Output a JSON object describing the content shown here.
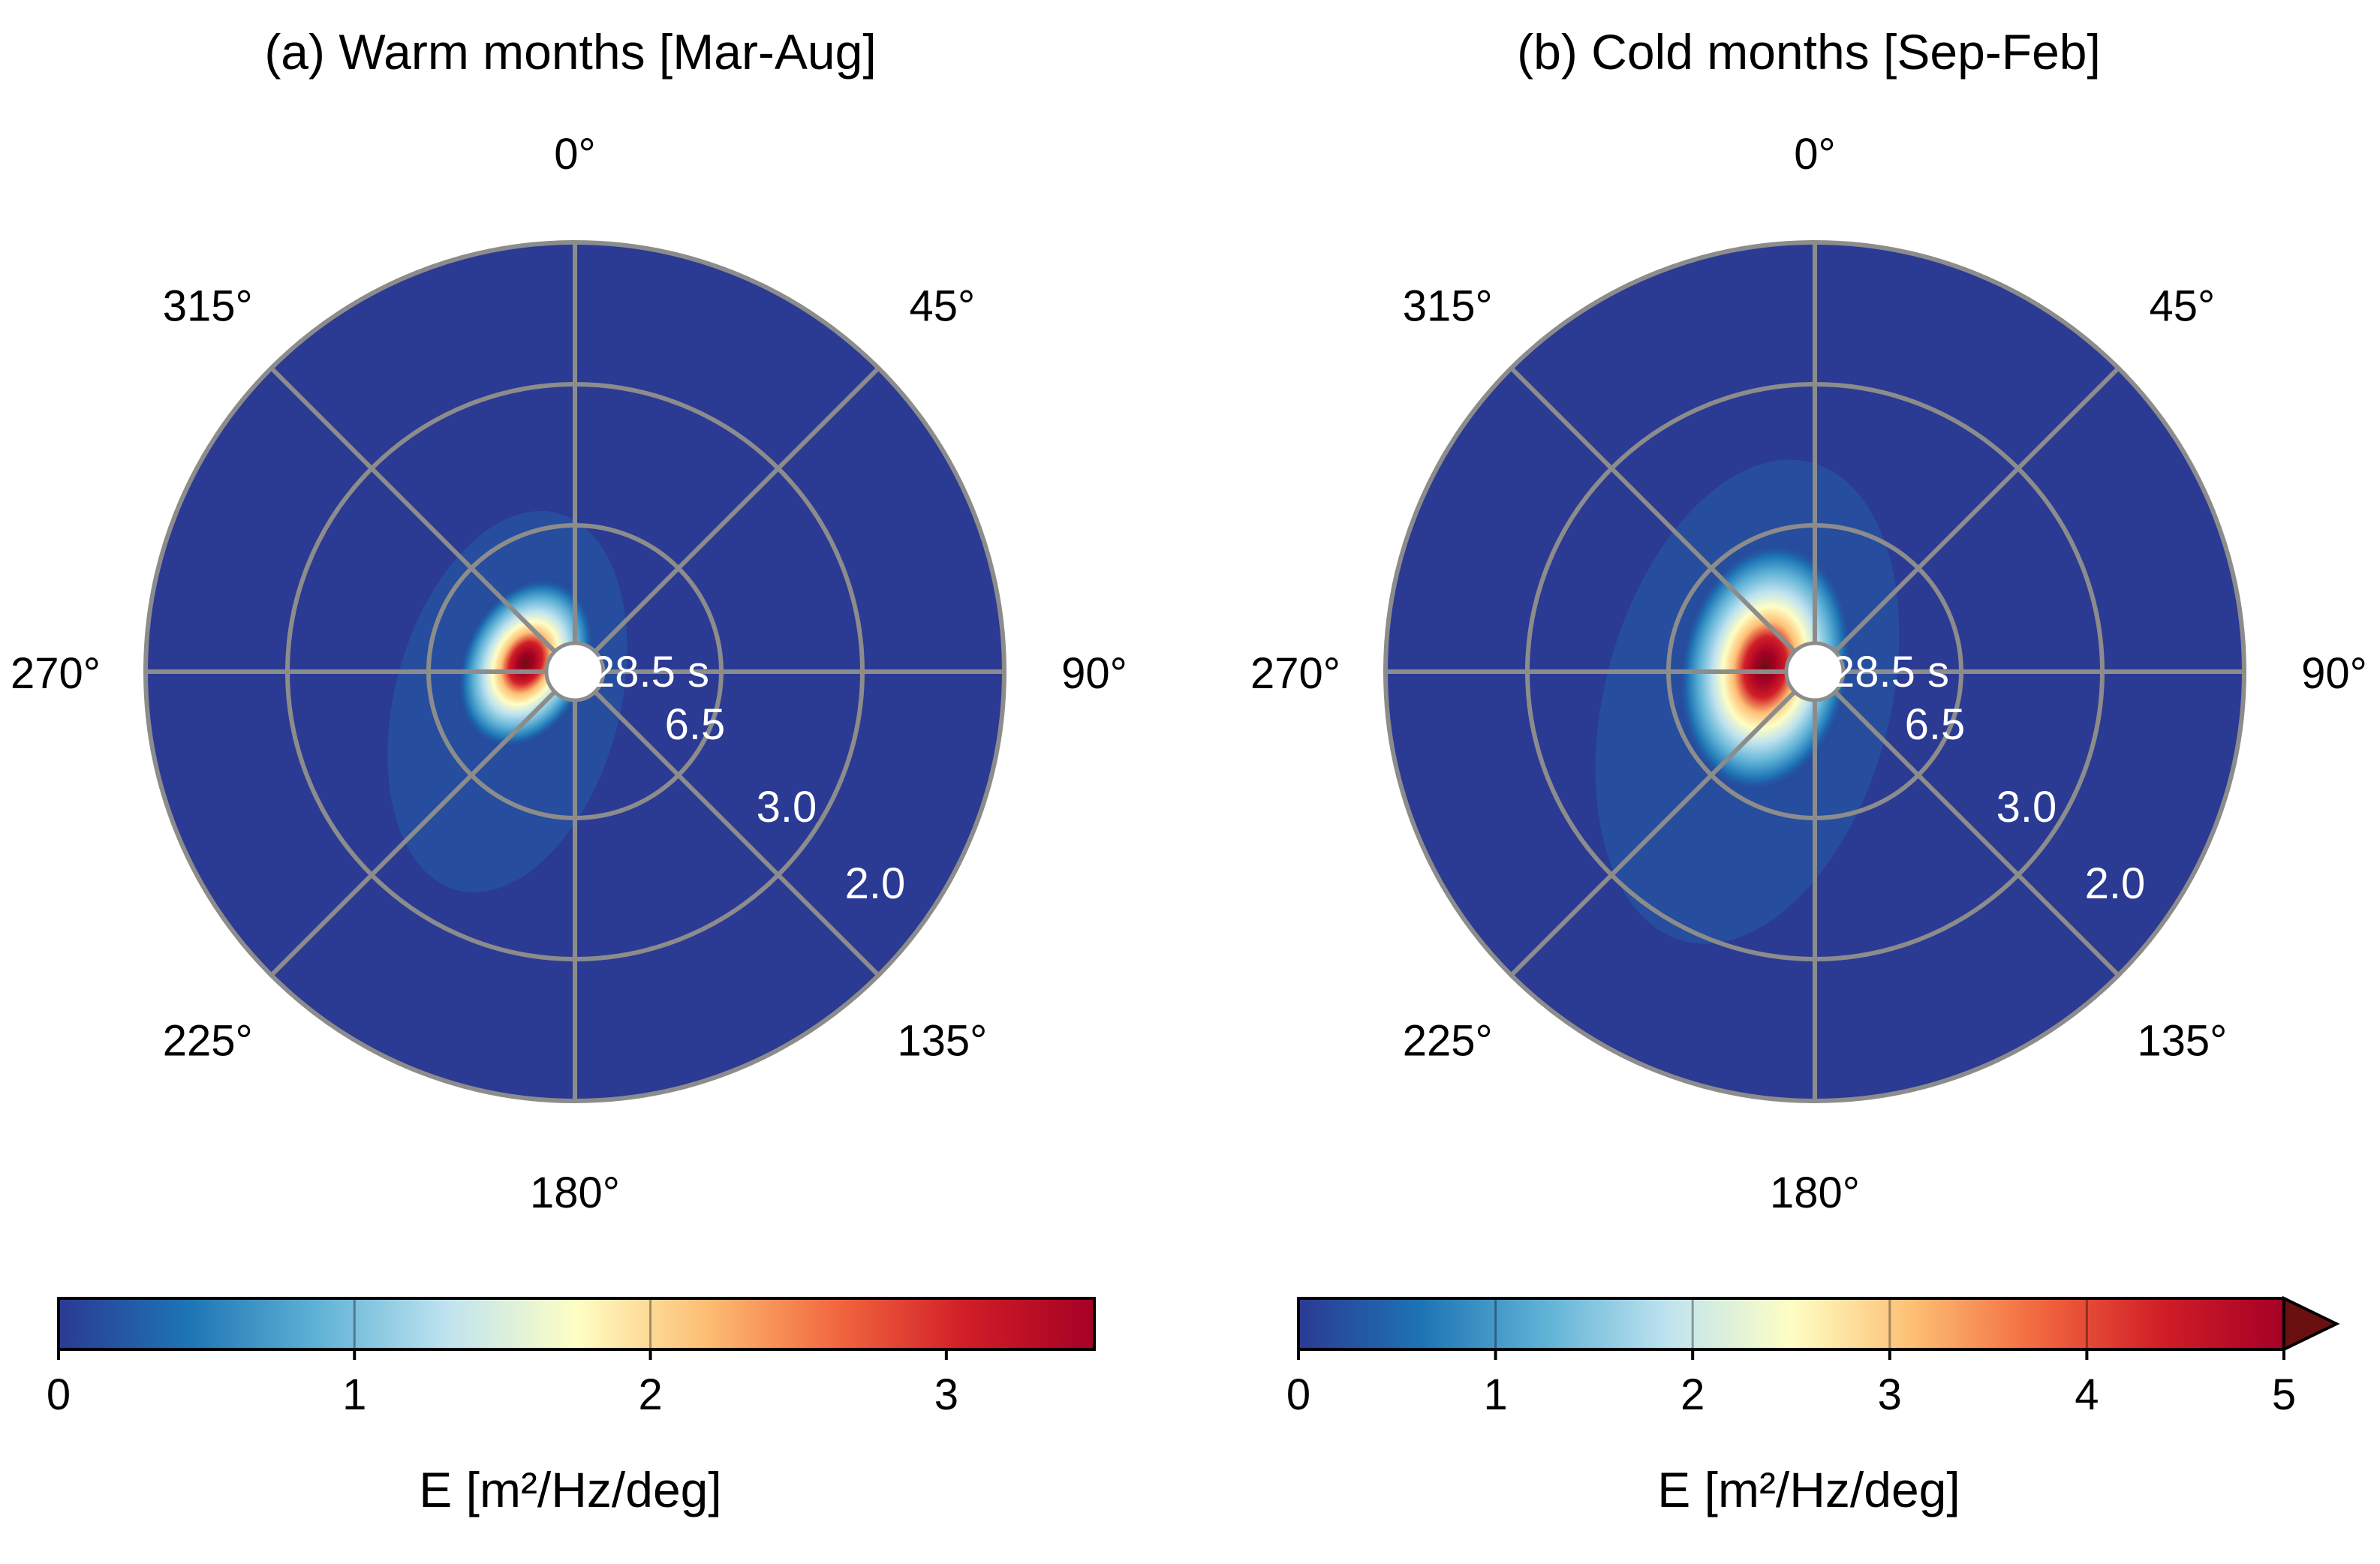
{
  "colors": {
    "background": "#2b3a93",
    "grid": "#8c8c8c",
    "colormap": [
      "#2b3a93",
      "#1d74b4",
      "#5fb2d6",
      "#bfe3ef",
      "#fefec4",
      "#fdbe73",
      "#f2683f",
      "#d11e27",
      "#a50026"
    ],
    "extend_color": "#6a1010"
  },
  "chart_data": [
    {
      "type": "polar-heatmap",
      "title": "(a) Warm months [Mar-Aug]",
      "angle_labels": [
        "0°",
        "45°",
        "90°",
        "135°",
        "180°",
        "225°",
        "270°",
        "315°"
      ],
      "angles_deg": [
        0,
        45,
        90,
        135,
        180,
        225,
        270,
        315
      ],
      "radial_labels": [
        "28.5 s",
        "6.5",
        "3.0",
        "2.0"
      ],
      "radial_periods_s": [
        28.5,
        6.5,
        3.0,
        2.0
      ],
      "peak": {
        "direction_deg": 280,
        "period_s": 16,
        "value": 3.5
      },
      "colorbar": {
        "label": "E [m²/Hz/deg]",
        "min": 0,
        "max": 3.5,
        "extend": "neither",
        "ticks": [
          0,
          1,
          2,
          3
        ],
        "tick_labels": [
          "0",
          "1",
          "2",
          "3"
        ]
      }
    },
    {
      "type": "polar-heatmap",
      "title": "(b) Cold months [Sep-Feb]",
      "angle_labels": [
        "0°",
        "45°",
        "90°",
        "135°",
        "180°",
        "225°",
        "270°",
        "315°"
      ],
      "angles_deg": [
        0,
        45,
        90,
        135,
        180,
        225,
        270,
        315
      ],
      "radial_labels": [
        "28.5 s",
        "6.5",
        "3.0",
        "2.0"
      ],
      "radial_periods_s": [
        28.5,
        6.5,
        3.0,
        2.0
      ],
      "peak": {
        "direction_deg": 275,
        "period_s": 16,
        "value": 5.2
      },
      "colorbar": {
        "label": "E [m²/Hz/deg]",
        "min": 0,
        "max": 5,
        "extend": "max",
        "ticks": [
          0,
          1,
          2,
          3,
          4,
          5
        ],
        "tick_labels": [
          "0",
          "1",
          "2",
          "3",
          "4",
          "5"
        ]
      }
    }
  ]
}
